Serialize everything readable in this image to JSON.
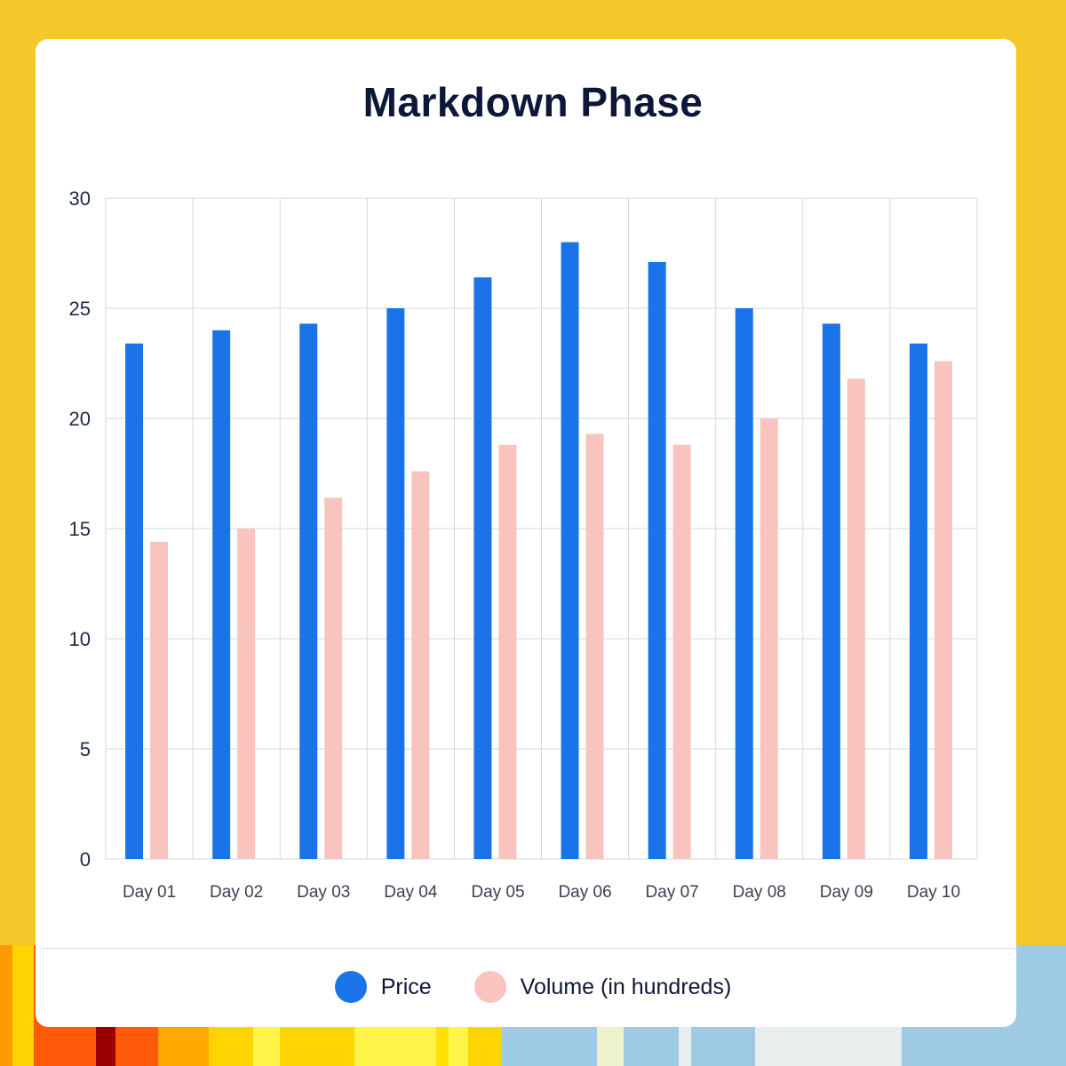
{
  "chart_data": {
    "type": "bar",
    "title": "Markdown Phase",
    "categories": [
      "Day 01",
      "Day 02",
      "Day 03",
      "Day 04",
      "Day 05",
      "Day 06",
      "Day 07",
      "Day 08",
      "Day 09",
      "Day 10"
    ],
    "series": [
      {
        "name": "Price",
        "color": "#1a73e8",
        "values": [
          23.4,
          24.0,
          24.3,
          25.0,
          26.4,
          28.0,
          27.1,
          25.0,
          24.3,
          23.4
        ]
      },
      {
        "name": "Volume (in hundreds)",
        "color": "#f8c4bd",
        "values": [
          14.4,
          15.0,
          16.4,
          17.6,
          18.8,
          19.3,
          18.8,
          20.0,
          21.8,
          22.6
        ]
      }
    ],
    "ylim": [
      0,
      30
    ],
    "yticks": [
      "0",
      "5",
      "10",
      "15",
      "20",
      "25",
      "30"
    ],
    "grid": true,
    "legend_position": "bottom"
  },
  "colors": {
    "background": "#f5c72a",
    "card": "#ffffff",
    "grid": "#d3d8de",
    "text": "#0d1838",
    "strip": [
      "#ff9900",
      "#ffd400",
      "#ff5a0a",
      "#9a0000",
      "#ff5a0a",
      "#ffa800",
      "#ffd400",
      "#fff54a",
      "#ffd400",
      "#fff54a",
      "#ffe000",
      "#fff54a",
      "#ffd400",
      "#9ecbe3",
      "#eef2cc",
      "#9ecbe3",
      "#e8edee",
      "#9ecbe3",
      "#e8edee",
      "#9ecbe3"
    ]
  }
}
